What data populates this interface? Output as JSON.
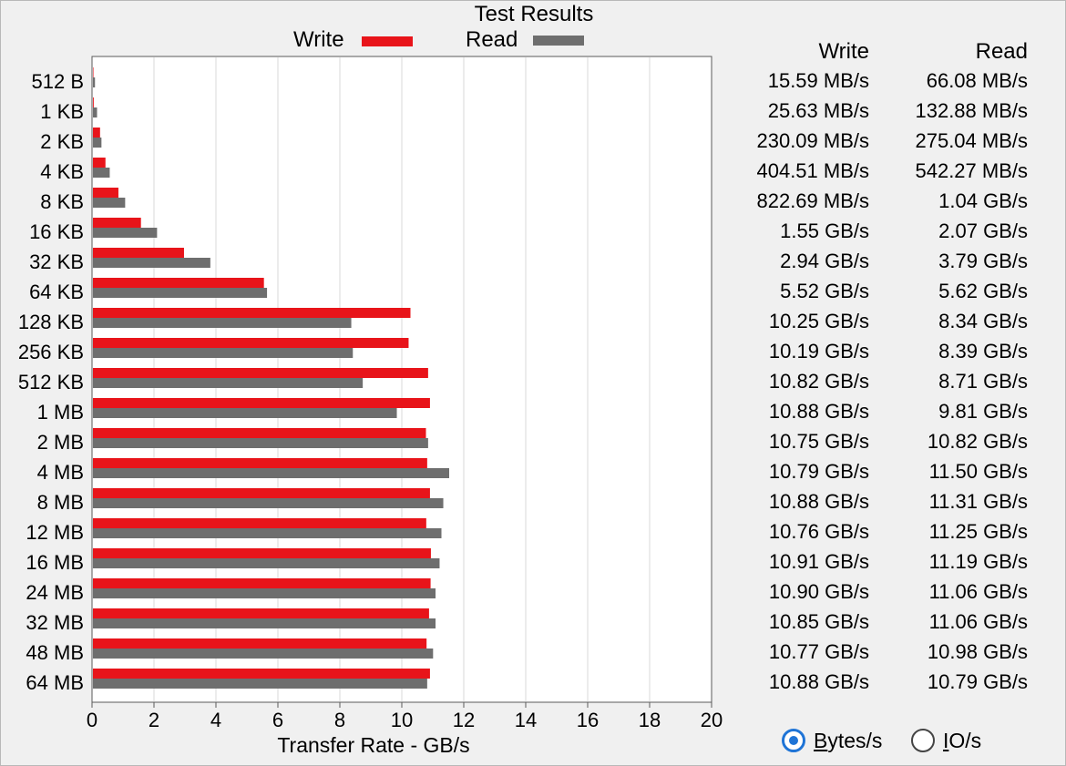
{
  "window": {
    "title": "Test Results"
  },
  "legend": {
    "write_label": "Write",
    "read_label": "Read"
  },
  "colors": {
    "write": "#e8141a",
    "read": "#6e6e6e",
    "grid": "#d8d8d8",
    "radio_selected": "#1f74d6"
  },
  "table": {
    "write_header": "Write",
    "read_header": "Read"
  },
  "options": {
    "bytes_label_underlined": "B",
    "bytes_label_rest": "ytes/s",
    "io_label_underlined": "I",
    "io_label_rest": "O/s",
    "selected": "Bytes/s"
  },
  "chart_data": {
    "type": "bar",
    "orientation": "horizontal",
    "title": "Test Results",
    "xlabel": "Transfer Rate - GB/s",
    "xlim": [
      0,
      20
    ],
    "xticks": [
      "0",
      "2",
      "4",
      "6",
      "8",
      "10",
      "12",
      "14",
      "16",
      "18",
      "20"
    ],
    "grid": "vertical",
    "legend_position": "top",
    "categories": [
      "512 B",
      "1 KB",
      "2 KB",
      "4 KB",
      "8 KB",
      "16 KB",
      "32 KB",
      "64 KB",
      "128 KB",
      "256 KB",
      "512 KB",
      "1 MB",
      "2 MB",
      "4 MB",
      "8 MB",
      "12 MB",
      "16 MB",
      "24 MB",
      "32 MB",
      "48 MB",
      "64 MB"
    ],
    "series": [
      {
        "name": "Write",
        "values": [
          0.01559,
          0.02563,
          0.23009,
          0.40451,
          0.82269,
          1.55,
          2.94,
          5.52,
          10.25,
          10.19,
          10.82,
          10.88,
          10.75,
          10.79,
          10.88,
          10.76,
          10.91,
          10.9,
          10.85,
          10.77,
          10.88
        ],
        "labels": [
          "15.59 MB/s",
          "25.63 MB/s",
          "230.09 MB/s",
          "404.51 MB/s",
          "822.69 MB/s",
          "1.55 GB/s",
          "2.94 GB/s",
          "5.52 GB/s",
          "10.25 GB/s",
          "10.19 GB/s",
          "10.82 GB/s",
          "10.88 GB/s",
          "10.75 GB/s",
          "10.79 GB/s",
          "10.88 GB/s",
          "10.76 GB/s",
          "10.91 GB/s",
          "10.90 GB/s",
          "10.85 GB/s",
          "10.77 GB/s",
          "10.88 GB/s"
        ]
      },
      {
        "name": "Read",
        "values": [
          0.06608,
          0.13288,
          0.27504,
          0.54227,
          1.04,
          2.07,
          3.79,
          5.62,
          8.34,
          8.39,
          8.71,
          9.81,
          10.82,
          11.5,
          11.31,
          11.25,
          11.19,
          11.06,
          11.06,
          10.98,
          10.79
        ],
        "labels": [
          "66.08 MB/s",
          "132.88 MB/s",
          "275.04 MB/s",
          "542.27 MB/s",
          "1.04 GB/s",
          "2.07 GB/s",
          "3.79 GB/s",
          "5.62 GB/s",
          "8.34 GB/s",
          "8.39 GB/s",
          "8.71 GB/s",
          "9.81 GB/s",
          "10.82 GB/s",
          "11.50 GB/s",
          "11.31 GB/s",
          "11.25 GB/s",
          "11.19 GB/s",
          "11.06 GB/s",
          "11.06 GB/s",
          "10.98 GB/s",
          "10.79 GB/s"
        ]
      }
    ]
  }
}
